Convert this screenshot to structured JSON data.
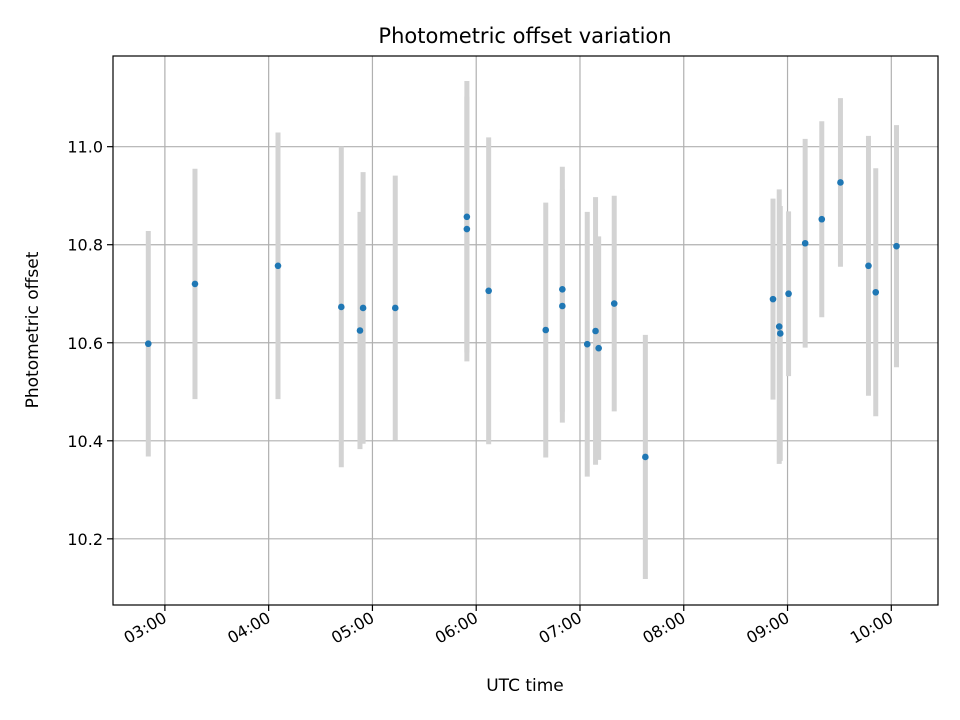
{
  "chart_data": {
    "type": "scatter",
    "title": "Photometric offset variation",
    "xlabel": "UTC time",
    "ylabel": "Photometric offset",
    "x_unit": "UTC hour",
    "xlim": [
      2.5,
      10.45
    ],
    "ylim": [
      10.065,
      11.185
    ],
    "x_ticks": [
      {
        "value": 3,
        "label": "03:00"
      },
      {
        "value": 4,
        "label": "04:00"
      },
      {
        "value": 5,
        "label": "05:00"
      },
      {
        "value": 6,
        "label": "06:00"
      },
      {
        "value": 7,
        "label": "07:00"
      },
      {
        "value": 8,
        "label": "08:00"
      },
      {
        "value": 9,
        "label": "09:00"
      },
      {
        "value": 10,
        "label": "10:00"
      }
    ],
    "y_ticks": [
      {
        "value": 10.2,
        "label": "10.2"
      },
      {
        "value": 10.4,
        "label": "10.4"
      },
      {
        "value": 10.6,
        "label": "10.6"
      },
      {
        "value": 10.8,
        "label": "10.8"
      },
      {
        "value": 11.0,
        "label": "11.0"
      }
    ],
    "grid": true,
    "point_color": "#1f77b4",
    "errorbar_color": "#d3d3d3",
    "points": [
      {
        "x": 2.84,
        "y": 10.598,
        "err": 0.23
      },
      {
        "x": 3.29,
        "y": 10.72,
        "err": 0.235
      },
      {
        "x": 4.09,
        "y": 10.757,
        "err": 0.272
      },
      {
        "x": 4.7,
        "y": 10.673,
        "err": 0.327
      },
      {
        "x": 4.88,
        "y": 10.625,
        "err": 0.242
      },
      {
        "x": 4.91,
        "y": 10.671,
        "err": 0.277
      },
      {
        "x": 5.22,
        "y": 10.671,
        "err": 0.27
      },
      {
        "x": 5.91,
        "y": 10.857,
        "err": 0.277
      },
      {
        "x": 5.91,
        "y": 10.832,
        "err": 0.27
      },
      {
        "x": 6.12,
        "y": 10.706,
        "err": 0.313
      },
      {
        "x": 6.67,
        "y": 10.626,
        "err": 0.26
      },
      {
        "x": 6.83,
        "y": 10.709,
        "err": 0.25
      },
      {
        "x": 6.83,
        "y": 10.675,
        "err": 0.238
      },
      {
        "x": 7.07,
        "y": 10.597,
        "err": 0.27
      },
      {
        "x": 7.15,
        "y": 10.624,
        "err": 0.273
      },
      {
        "x": 7.18,
        "y": 10.589,
        "err": 0.228
      },
      {
        "x": 7.33,
        "y": 10.68,
        "err": 0.22
      },
      {
        "x": 7.63,
        "y": 10.367,
        "err": 0.249
      },
      {
        "x": 8.86,
        "y": 10.689,
        "err": 0.205
      },
      {
        "x": 8.92,
        "y": 10.633,
        "err": 0.28
      },
      {
        "x": 8.93,
        "y": 10.619,
        "err": 0.26
      },
      {
        "x": 9.01,
        "y": 10.7,
        "err": 0.168
      },
      {
        "x": 9.17,
        "y": 10.803,
        "err": 0.213
      },
      {
        "x": 9.33,
        "y": 10.852,
        "err": 0.2
      },
      {
        "x": 9.51,
        "y": 10.927,
        "err": 0.172
      },
      {
        "x": 9.78,
        "y": 10.757,
        "err": 0.265
      },
      {
        "x": 9.85,
        "y": 10.703,
        "err": 0.253
      },
      {
        "x": 10.05,
        "y": 10.797,
        "err": 0.247
      }
    ]
  }
}
